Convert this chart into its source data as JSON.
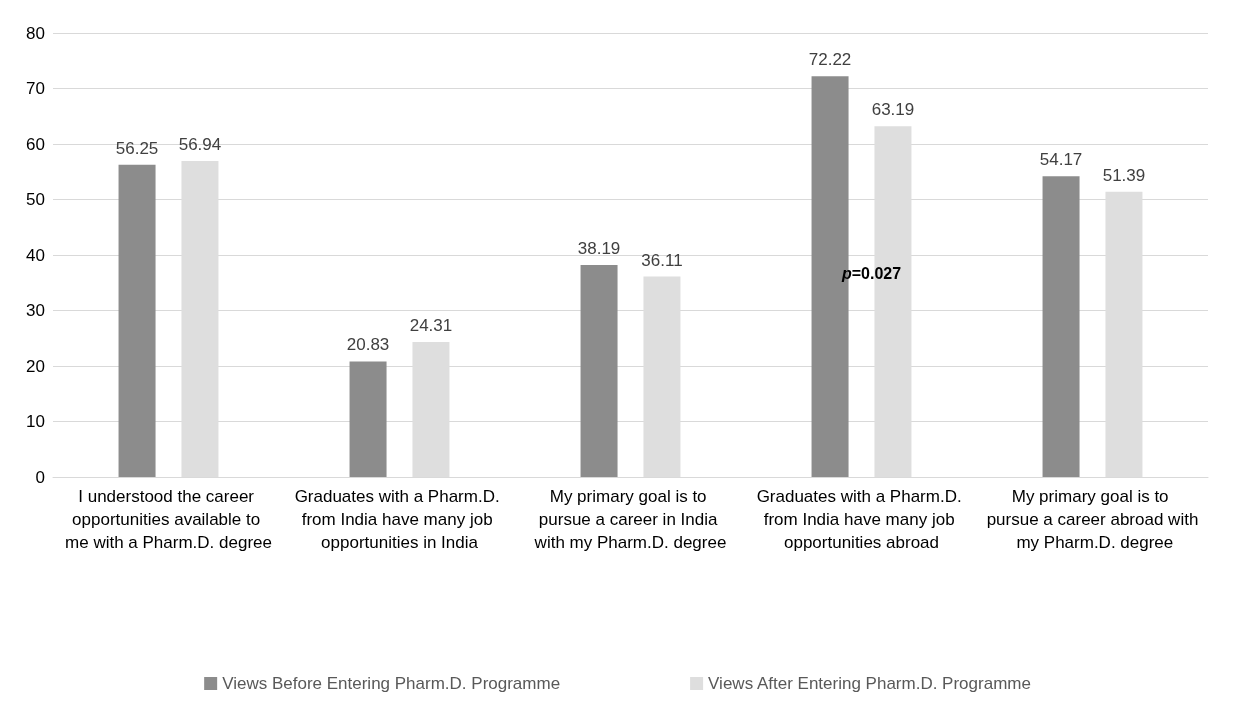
{
  "chart_data": {
    "type": "bar",
    "categories": [
      "I understood the career opportunities available to me with a Pharm.D. degree",
      "Graduates with a Pharm.D. from India have many job opportunities in India",
      "My primary goal is to pursue a career in India with my Pharm.D. degree",
      "Graduates with a Pharm.D. from India have many job opportunities abroad",
      "My primary goal is to pursue a career abroad with my Pharm.D. degree"
    ],
    "series": [
      {
        "name": "Views Before Entering Pharm.D. Programme",
        "color": "#8c8c8c",
        "values": [
          56.25,
          20.83,
          38.19,
          72.22,
          54.17
        ]
      },
      {
        "name": "Views After Entering Pharm.D. Programme",
        "color": "#dedede",
        "values": [
          56.94,
          24.31,
          36.11,
          63.19,
          51.39
        ]
      }
    ],
    "ylim": [
      0,
      80
    ],
    "yticks": [
      0,
      10,
      20,
      30,
      40,
      50,
      60,
      70,
      80
    ],
    "grid": "y",
    "legend": "bottom",
    "data_labels": true,
    "annotations": [
      "p=0.027"
    ]
  }
}
